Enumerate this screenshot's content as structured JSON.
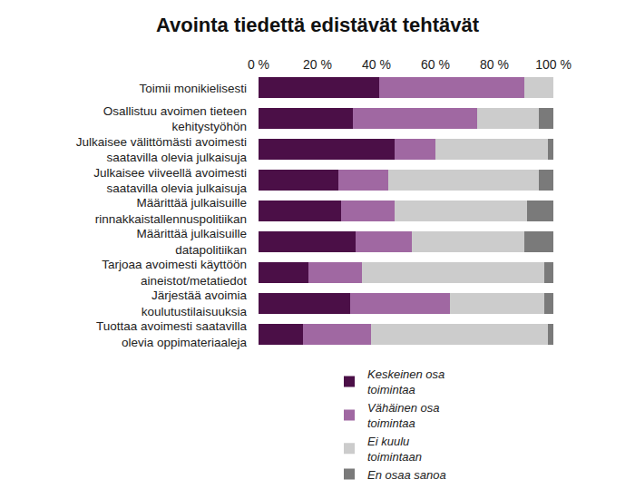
{
  "chart_data": {
    "type": "bar",
    "title": "Avointa tiedettä edistävät tehtävät",
    "orientation": "horizontal",
    "stacked": true,
    "grid": false,
    "legend": "bottom",
    "categories": [
      "Toimii monikielisesti",
      "Osallistuu avoimen tieteen kehitystyöhön",
      "Julkaisee välittömästi avoimesti saatavilla olevia julkaisuja",
      "Julkaisee viiveellä avoimesti saatavilla olevia julkaisuja",
      "Määrittää julkaisuille rinnakkaistallennuspolitiikan",
      "Määrittää julkaisuille datapolitiikan",
      "Tarjoaa avoimesti käyttöön aineistot/metatiedot",
      "Järjestää avoimia koulutustilaisuuksia",
      "Tuottaa avoimesti saatavilla olevia oppimateriaaleja"
    ],
    "series": [
      {
        "name": "Keskeinen osa toimintaa",
        "color": "#4b0f47",
        "values": [
          41,
          32,
          46,
          27,
          28,
          33,
          17,
          31,
          15
        ]
      },
      {
        "name": "Vähäinen osa toimintaa",
        "color": "#a068a2",
        "values": [
          49,
          42,
          14,
          17,
          18,
          19,
          18,
          34,
          23
        ]
      },
      {
        "name": "Ei kuulu toimintaan",
        "color": "#cccccc",
        "values": [
          10,
          21,
          38,
          51,
          45,
          38,
          62,
          32,
          60
        ]
      },
      {
        "name": "En osaa sanoa",
        "color": "#7a7a7a",
        "values": [
          0,
          5,
          2,
          5,
          9,
          10,
          3,
          3,
          2
        ]
      }
    ],
    "xlim": [
      0,
      100
    ],
    "xticks": [
      {
        "value": 0,
        "label": "0 %"
      },
      {
        "value": 20,
        "label": "20 %"
      },
      {
        "value": 40,
        "label": "40 %"
      },
      {
        "value": 60,
        "label": "60 %"
      },
      {
        "value": 80,
        "label": "80 %"
      },
      {
        "value": 100,
        "label": "100 %"
      }
    ]
  }
}
